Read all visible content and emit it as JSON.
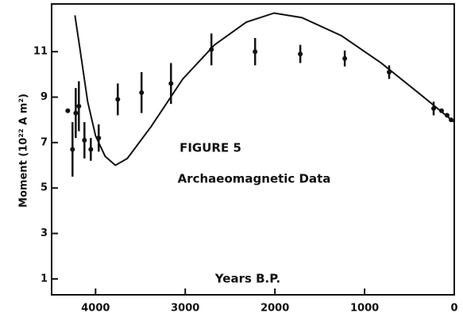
{
  "chart_data": {
    "type": "scatter",
    "annotations": [
      "FIGURE 5",
      "Archaeomagnetic Data"
    ],
    "x_label": "Years B.P.",
    "y_label": "Moment (10²² A m²)",
    "x": [
      4310,
      4257,
      4221,
      4186,
      4124,
      4053,
      3965,
      3752,
      3487,
      3159,
      2708,
      2221,
      1717,
      1221,
      726,
      230,
      142,
      80,
      35
    ],
    "values": [
      8.4,
      6.7,
      8.3,
      8.6,
      7.1,
      6.7,
      7.2,
      8.9,
      9.2,
      9.6,
      11.1,
      11.0,
      10.9,
      10.7,
      10.1,
      8.5,
      8.4,
      8.2,
      8.0
    ],
    "errors": [
      null,
      1.2,
      1.1,
      1.1,
      0.8,
      0.5,
      0.6,
      0.7,
      0.9,
      0.9,
      0.7,
      0.6,
      0.4,
      0.35,
      0.3,
      0.3,
      null,
      null,
      null
    ],
    "curve": {
      "x": [
        4230,
        4177,
        4088,
        4000,
        3894,
        3779,
        3646,
        3381,
        3027,
        2673,
        2319,
        2009,
        1699,
        1257,
        814,
        372,
        0
      ],
      "values": [
        12.6,
        11.2,
        8.8,
        7.3,
        6.4,
        6.0,
        6.3,
        7.7,
        9.8,
        11.3,
        12.3,
        12.7,
        12.5,
        11.7,
        10.5,
        9.1,
        7.9
      ]
    },
    "color": "#111111",
    "xlim": [
      4490,
      0
    ],
    "ylim": [
      0.3,
      13.1
    ],
    "xticks": [
      4000,
      3000,
      2000,
      1000,
      0
    ],
    "yticks": [
      1,
      3,
      5,
      7,
      9,
      11
    ]
  }
}
